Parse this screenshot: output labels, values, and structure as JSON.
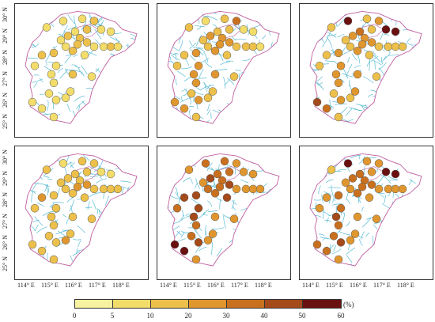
{
  "legend": {
    "unit": "(%)",
    "labels": [
      "0",
      "5",
      "10",
      "20",
      "30",
      "40",
      "50",
      "60"
    ],
    "colors": [
      "#f7f2a0",
      "#f2dc6a",
      "#ecc04a",
      "#e0962e",
      "#c9701f",
      "#a44a1b",
      "#6a1010"
    ]
  },
  "axes": {
    "lat_labels": [
      "30° N",
      "29° N",
      "28° N",
      "27° N",
      "26° N",
      "25° N"
    ],
    "lon_labels": [
      "114° E",
      "115° E",
      "116° E",
      "117° E",
      "118° E"
    ]
  },
  "colors": {
    "river": "#5bbcd3",
    "border": "#c05fa0",
    "panel_frame": "#333333"
  },
  "stations_top": [
    {
      "lon": 116.1,
      "lat": 29.7
    },
    {
      "lon": 115.3,
      "lat": 29.6
    },
    {
      "lon": 114.6,
      "lat": 29.3
    },
    {
      "lon": 116.6,
      "lat": 29.6
    },
    {
      "lon": 115.8,
      "lat": 29.1
    },
    {
      "lon": 116.3,
      "lat": 29.2
    },
    {
      "lon": 116.9,
      "lat": 29.2
    },
    {
      "lon": 117.3,
      "lat": 29.1
    },
    {
      "lon": 115.5,
      "lat": 28.9
    },
    {
      "lon": 116.0,
      "lat": 28.8
    },
    {
      "lon": 115.2,
      "lat": 28.7
    },
    {
      "lon": 115.9,
      "lat": 28.5
    },
    {
      "lon": 116.3,
      "lat": 28.6
    },
    {
      "lon": 116.6,
      "lat": 28.4
    },
    {
      "lon": 117.0,
      "lat": 28.4
    },
    {
      "lon": 117.3,
      "lat": 28.4
    },
    {
      "lon": 117.6,
      "lat": 28.4
    },
    {
      "lon": 115.4,
      "lat": 28.4
    },
    {
      "lon": 114.9,
      "lat": 28.1
    },
    {
      "lon": 114.4,
      "lat": 28.0
    },
    {
      "lon": 115.7,
      "lat": 28.2
    },
    {
      "lon": 116.2,
      "lat": 28.0
    },
    {
      "lon": 114.1,
      "lat": 27.5
    },
    {
      "lon": 115.0,
      "lat": 27.5
    },
    {
      "lon": 114.8,
      "lat": 27.1
    },
    {
      "lon": 114.9,
      "lat": 26.7
    },
    {
      "lon": 115.7,
      "lat": 27.1
    },
    {
      "lon": 116.5,
      "lat": 27.0
    },
    {
      "lon": 114.7,
      "lat": 26.2
    },
    {
      "lon": 115.0,
      "lat": 25.9
    },
    {
      "lon": 115.4,
      "lat": 26.0
    },
    {
      "lon": 115.6,
      "lat": 26.3
    },
    {
      "lon": 114.0,
      "lat": 25.8
    },
    {
      "lon": 114.4,
      "lat": 25.5
    },
    {
      "lon": 114.9,
      "lat": 25.1
    }
  ],
  "panels": [
    {
      "id": "a",
      "level": [
        1,
        1,
        1,
        2,
        1,
        2,
        1,
        1,
        2,
        2,
        1,
        2,
        2,
        1,
        1,
        2,
        1,
        1,
        2,
        2,
        2,
        1,
        1,
        1,
        1,
        1,
        2,
        1,
        1,
        1,
        1,
        1,
        1,
        1,
        1
      ]
    },
    {
      "id": "b",
      "level": [
        2,
        1,
        2,
        4,
        2,
        2,
        1,
        1,
        3,
        3,
        2,
        3,
        3,
        2,
        2,
        2,
        1,
        2,
        3,
        2,
        3,
        2,
        2,
        3,
        3,
        3,
        3,
        2,
        2,
        3,
        2,
        2,
        3,
        3,
        2
      ]
    },
    {
      "id": "c",
      "level": [
        2,
        6,
        2,
        3,
        4,
        2,
        6,
        6,
        3,
        3,
        2,
        3,
        3,
        2,
        2,
        2,
        2,
        2,
        3,
        2,
        3,
        2,
        2,
        3,
        3,
        3,
        3,
        2,
        2,
        3,
        2,
        3,
        5,
        4,
        2
      ]
    },
    {
      "id": "d",
      "level": [
        2,
        1,
        2,
        2,
        2,
        2,
        1,
        1,
        2,
        2,
        2,
        3,
        3,
        2,
        2,
        2,
        2,
        2,
        2,
        3,
        2,
        2,
        2,
        2,
        2,
        2,
        2,
        2,
        2,
        2,
        3,
        2,
        2,
        2,
        2
      ]
    },
    {
      "id": "e",
      "level": [
        4,
        4,
        3,
        3,
        4,
        4,
        3,
        3,
        5,
        4,
        3,
        4,
        5,
        3,
        3,
        3,
        3,
        4,
        5,
        5,
        4,
        5,
        4,
        5,
        5,
        4,
        3,
        3,
        4,
        5,
        3,
        3,
        6,
        6,
        3
      ]
    },
    {
      "id": "f",
      "level": [
        3,
        6,
        2,
        3,
        4,
        3,
        6,
        6,
        4,
        4,
        3,
        4,
        4,
        3,
        3,
        3,
        3,
        3,
        4,
        3,
        4,
        3,
        3,
        4,
        5,
        4,
        3,
        3,
        4,
        5,
        3,
        3,
        4,
        4,
        3
      ]
    }
  ]
}
